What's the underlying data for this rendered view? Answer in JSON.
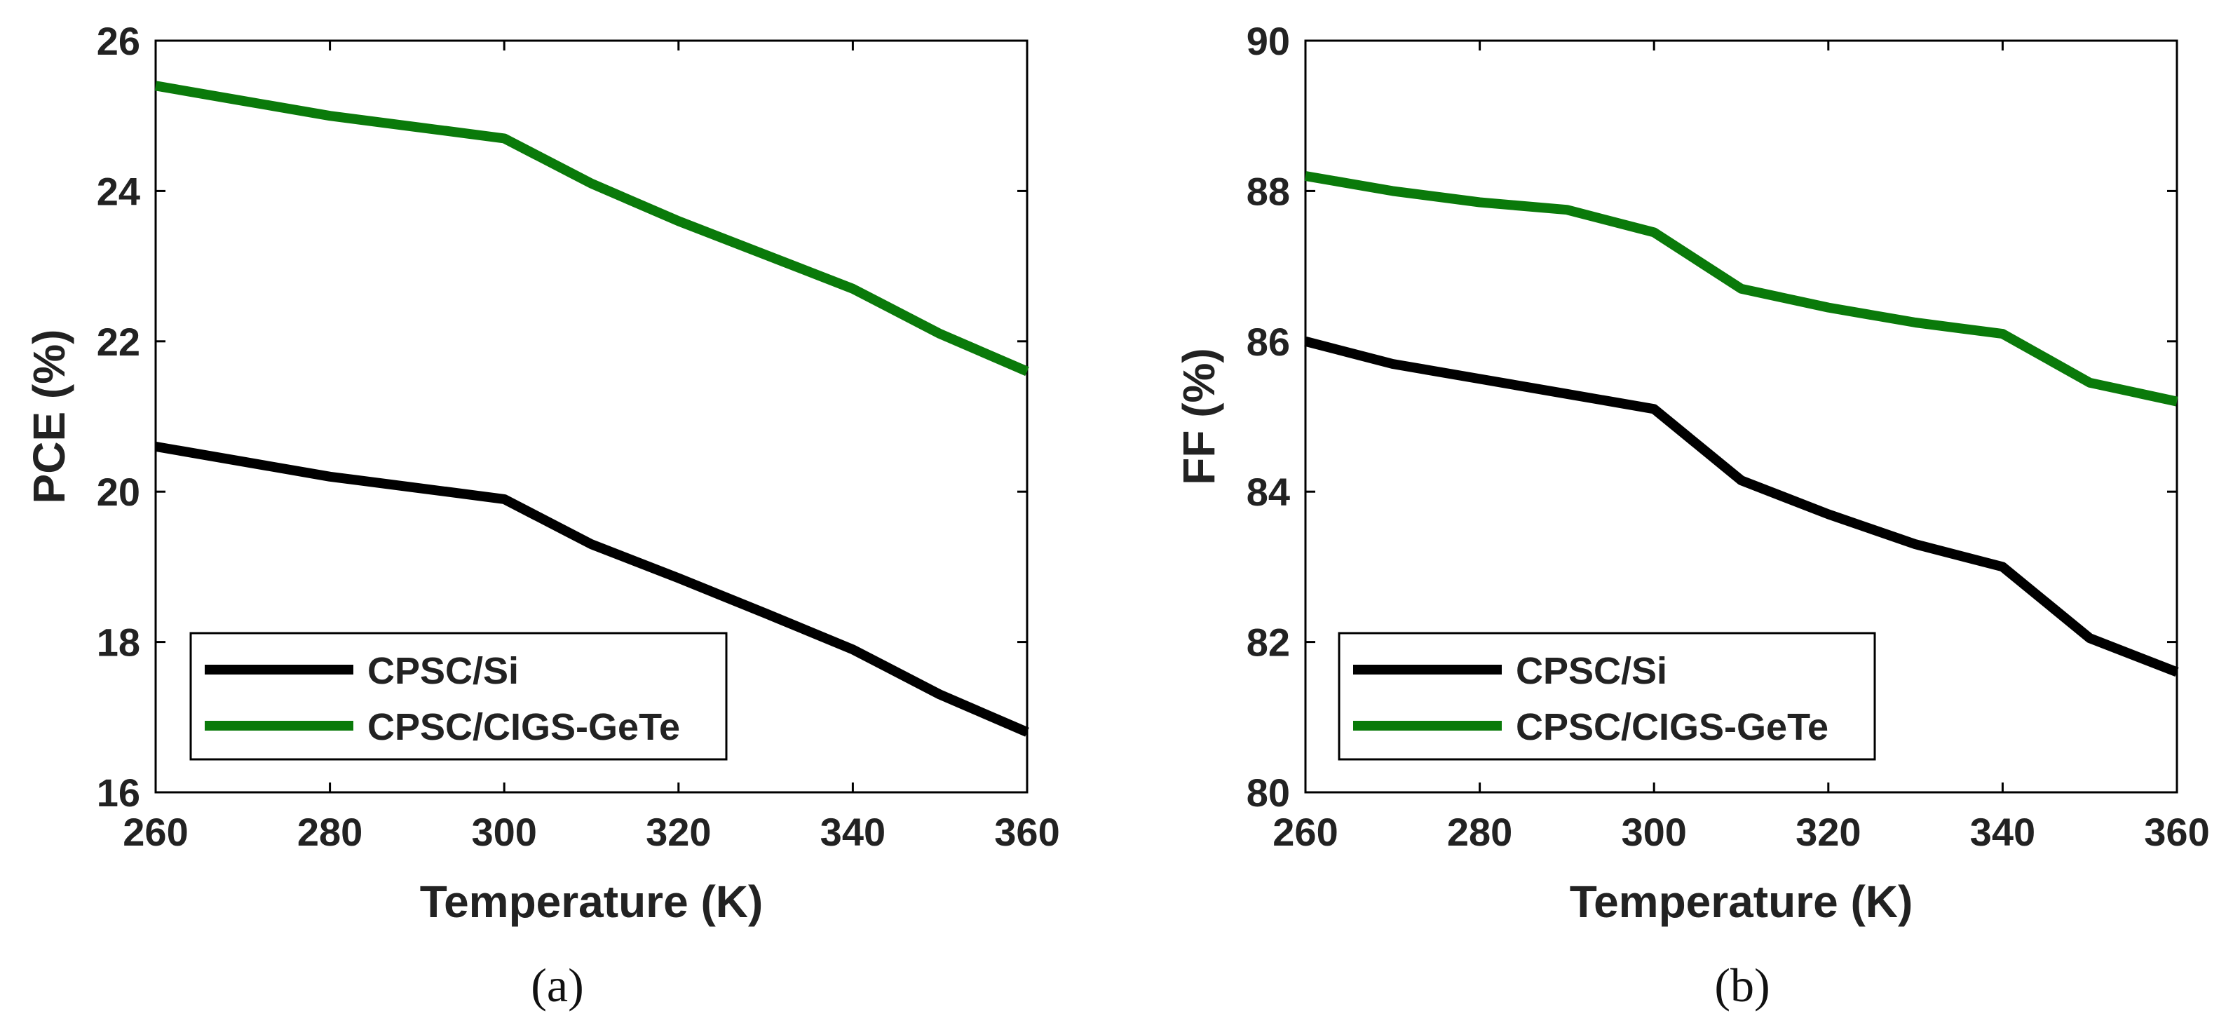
{
  "chart_data": [
    {
      "type": "line",
      "panel_label": "a",
      "title": "",
      "xlabel": "Temperature (K)",
      "ylabel": "PCE (%)",
      "xlim": [
        260,
        360
      ],
      "ylim": [
        16,
        26
      ],
      "xticks": [
        260,
        280,
        300,
        320,
        340,
        360
      ],
      "yticks": [
        16,
        18,
        20,
        22,
        24,
        26
      ],
      "grid": false,
      "legend_position": "bottom-left",
      "x": [
        260,
        270,
        280,
        290,
        300,
        310,
        320,
        330,
        340,
        350,
        360
      ],
      "series": [
        {
          "name": "CPSC/Si",
          "color": "#000000",
          "values": [
            20.6,
            20.4,
            20.2,
            20.05,
            19.9,
            19.3,
            18.85,
            18.38,
            17.9,
            17.3,
            16.8
          ]
        },
        {
          "name": "CPSC/CIGS-GeTe",
          "color": "#0a7a0a",
          "values": [
            25.4,
            25.2,
            25.0,
            24.85,
            24.7,
            24.1,
            23.6,
            23.15,
            22.7,
            22.1,
            21.6
          ]
        }
      ]
    },
    {
      "type": "line",
      "panel_label": "b",
      "title": "",
      "xlabel": "Temperature (K)",
      "ylabel": "FF (%)",
      "xlim": [
        260,
        360
      ],
      "ylim": [
        80,
        90
      ],
      "xticks": [
        260,
        280,
        300,
        320,
        340,
        360
      ],
      "yticks": [
        80,
        82,
        84,
        86,
        88,
        90
      ],
      "grid": false,
      "legend_position": "bottom-left",
      "x": [
        260,
        270,
        280,
        290,
        300,
        310,
        320,
        330,
        340,
        350,
        360
      ],
      "series": [
        {
          "name": "CPSC/Si",
          "color": "#000000",
          "values": [
            86.0,
            85.7,
            85.5,
            85.3,
            85.1,
            84.15,
            83.7,
            83.3,
            83.0,
            82.05,
            81.6
          ]
        },
        {
          "name": "CPSC/CIGS-GeTe",
          "color": "#0a7a0a",
          "values": [
            88.2,
            88.0,
            87.85,
            87.75,
            87.45,
            86.7,
            86.45,
            86.25,
            86.1,
            85.45,
            85.2
          ]
        }
      ]
    }
  ]
}
